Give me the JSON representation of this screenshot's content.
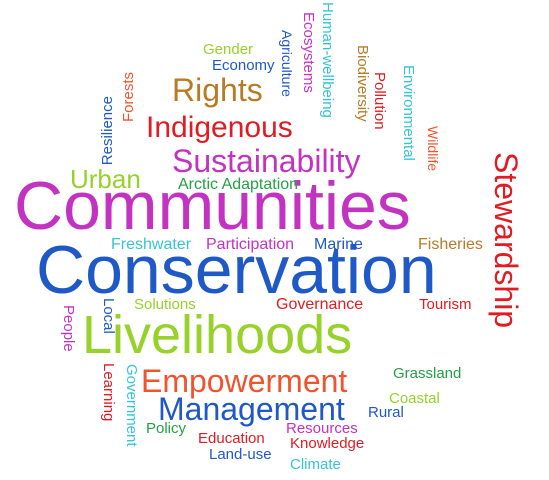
{
  "word_cloud": {
    "words": [
      {
        "key": "communities",
        "text": "Communities",
        "color": "#c333c1"
      },
      {
        "key": "conservation",
        "text": "Conservation",
        "color": "#1f58c7"
      },
      {
        "key": "livelihoods",
        "text": "Livelihoods",
        "color": "#97d12a"
      },
      {
        "key": "stewardship",
        "text": "Stewardship",
        "color": "#e11b22"
      },
      {
        "key": "sustainability",
        "text": "Sustainability",
        "color": "#c333c1"
      },
      {
        "key": "indigenous",
        "text": "Indigenous",
        "color": "#e11b22"
      },
      {
        "key": "rights",
        "text": "Rights",
        "color": "#b87a24"
      },
      {
        "key": "empowerment",
        "text": "Empowerment",
        "color": "#f0542f"
      },
      {
        "key": "management",
        "text": "Management",
        "color": "#1f58c7"
      },
      {
        "key": "urban",
        "text": "Urban",
        "color": "#97d12a"
      },
      {
        "key": "arctic_adaptation",
        "text": "Arctic Adaptation",
        "color": "#24a047"
      },
      {
        "key": "freshwater",
        "text": "Freshwater",
        "color": "#35c4d6"
      },
      {
        "key": "participation",
        "text": "Participation",
        "color": "#c333c1"
      },
      {
        "key": "marine",
        "text": "Marine",
        "color": "#1f58c7"
      },
      {
        "key": "fisheries",
        "text": "Fisheries",
        "color": "#b87a24"
      },
      {
        "key": "solutions",
        "text": "Solutions",
        "color": "#97d12a"
      },
      {
        "key": "governance",
        "text": "Governance",
        "color": "#e11b22"
      },
      {
        "key": "tourism",
        "text": "Tourism",
        "color": "#e11b22"
      },
      {
        "key": "grassland",
        "text": "Grassland",
        "color": "#24a047"
      },
      {
        "key": "coastal",
        "text": "Coastal",
        "color": "#97d12a"
      },
      {
        "key": "rural",
        "text": "Rural",
        "color": "#1f58c7"
      },
      {
        "key": "policy",
        "text": "Policy",
        "color": "#24a047"
      },
      {
        "key": "education",
        "text": "Education",
        "color": "#e11b22"
      },
      {
        "key": "resources",
        "text": "Resources",
        "color": "#c333c1"
      },
      {
        "key": "knowledge",
        "text": "Knowledge",
        "color": "#e11b22"
      },
      {
        "key": "land_use",
        "text": "Land-use",
        "color": "#1f58c7"
      },
      {
        "key": "climate",
        "text": "Climate",
        "color": "#35c4d6"
      },
      {
        "key": "gender",
        "text": "Gender",
        "color": "#97d12a"
      },
      {
        "key": "economy",
        "text": "Economy",
        "color": "#1f58c7"
      },
      {
        "key": "agriculture",
        "text": "Agriculture",
        "color": "#f0542f"
      },
      {
        "key": "forests",
        "text": "Forests",
        "color": "#1f58c7"
      },
      {
        "key": "resilience",
        "text": "Resilience",
        "color": "#1f58c7"
      },
      {
        "key": "ecosystems",
        "text": "Ecosystems",
        "color": "#c333c1"
      },
      {
        "key": "human_wellbeing",
        "text": "Human-wellbeing",
        "color": "#35c4d6"
      },
      {
        "key": "biodiversity",
        "text": "Biodiversity",
        "color": "#b87a24"
      },
      {
        "key": "pollution",
        "text": "Pollution",
        "color": "#e11b22"
      },
      {
        "key": "environmental",
        "text": "Environmental",
        "color": "#35c4d6"
      },
      {
        "key": "wildlife",
        "text": "Wildlife",
        "color": "#f0542f"
      },
      {
        "key": "people",
        "text": "People",
        "color": "#c333c1"
      },
      {
        "key": "local",
        "text": "Local",
        "color": "#1f58c7"
      },
      {
        "key": "learning",
        "text": "Learning",
        "color": "#e11b22"
      },
      {
        "key": "government",
        "text": "Government",
        "color": "#35c4d6"
      }
    ]
  }
}
